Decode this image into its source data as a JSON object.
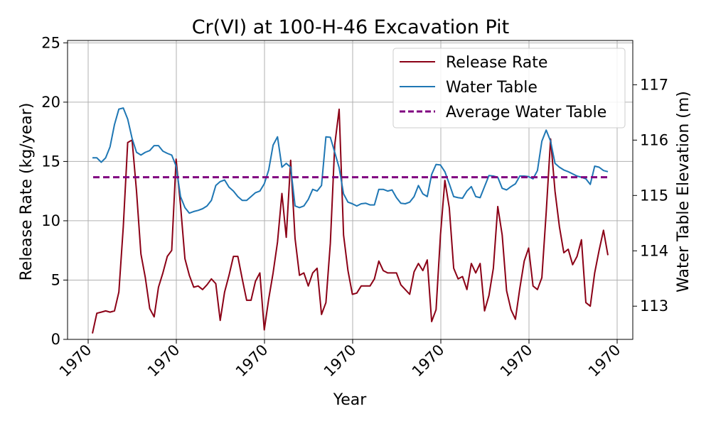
{
  "chart_data": {
    "type": "line",
    "title": "Cr(VI) at 100-H-46 Excavation Pit",
    "xlabel": "Year",
    "ylabel": "Release Rate (kg/year)",
    "ylabel_right": "Water Table Elevation (m)",
    "x_tick_labels": [
      "1970",
      "1970",
      "1970",
      "1970",
      "1970",
      "1970",
      "1970"
    ],
    "y_ticks": [
      0,
      5,
      10,
      15,
      20,
      25
    ],
    "y_tick_labels": [
      "0",
      "5",
      "10",
      "15",
      "20",
      "25"
    ],
    "y_right_ticks": [
      113,
      114,
      115,
      116,
      117
    ],
    "y_right_tick_labels": [
      "113",
      "114",
      "115",
      "116",
      "117"
    ],
    "ylim": [
      0,
      25.2
    ],
    "ylim_right": [
      112.4,
      117.8
    ],
    "grid": true,
    "legend_position": "top-right",
    "series": [
      {
        "name": "Release Rate",
        "axis": "left",
        "color": "#8b0016",
        "style": "solid",
        "values": [
          0.5,
          2.2,
          2.3,
          2.4,
          2.3,
          2.4,
          4.0,
          9.5,
          16.6,
          16.8,
          12.5,
          7.2,
          5.2,
          2.6,
          1.9,
          4.4,
          5.6,
          7.0,
          7.5,
          15.2,
          11.3,
          6.8,
          5.4,
          4.4,
          4.5,
          4.2,
          4.6,
          5.1,
          4.7,
          1.6,
          4.0,
          5.4,
          7.0,
          7.0,
          5.1,
          3.3,
          3.3,
          4.9,
          5.6,
          0.8,
          3.4,
          5.6,
          8.2,
          12.3,
          8.6,
          15.1,
          8.5,
          5.4,
          5.6,
          4.5,
          5.6,
          6.0,
          2.1,
          3.1,
          8.1,
          16.4,
          19.4,
          8.8,
          5.8,
          3.8,
          3.9,
          4.5,
          4.5,
          4.5,
          5.1,
          6.6,
          5.8,
          5.6,
          5.6,
          5.6,
          4.6,
          4.2,
          3.8,
          5.7,
          6.4,
          5.8,
          6.7,
          1.5,
          2.5,
          8.8,
          13.4,
          11.1,
          6.0,
          5.1,
          5.3,
          4.2,
          6.4,
          5.6,
          6.4,
          2.4,
          3.7,
          6.0,
          11.2,
          8.8,
          4.1,
          2.5,
          1.7,
          4.3,
          6.6,
          7.7,
          4.5,
          4.2,
          5.2,
          10.7,
          16.9,
          12.5,
          9.5,
          7.3,
          7.6,
          6.3,
          7.0,
          8.4,
          3.1,
          2.8,
          5.6,
          7.5,
          9.2,
          7.1
        ]
      },
      {
        "name": "Water Table",
        "axis": "right",
        "color": "#1f77b4",
        "style": "solid",
        "values": [
          115.68,
          115.68,
          115.6,
          115.68,
          115.88,
          116.28,
          116.56,
          116.58,
          116.38,
          116.03,
          115.78,
          115.73,
          115.78,
          115.81,
          115.9,
          115.9,
          115.8,
          115.76,
          115.73,
          115.53,
          114.98,
          114.78,
          114.68,
          114.71,
          114.73,
          114.76,
          114.81,
          114.91,
          115.18,
          115.25,
          115.28,
          115.15,
          115.08,
          114.98,
          114.91,
          114.91,
          114.98,
          115.05,
          115.08,
          115.21,
          115.46,
          115.91,
          116.06,
          115.51,
          115.58,
          115.51,
          114.81,
          114.78,
          114.81,
          114.93,
          115.11,
          115.08,
          115.18,
          116.06,
          116.05,
          115.78,
          115.5,
          115.03,
          114.88,
          114.85,
          114.81,
          114.85,
          114.86,
          114.83,
          114.83,
          115.11,
          115.11,
          115.08,
          115.1,
          114.96,
          114.86,
          114.85,
          114.88,
          114.98,
          115.18,
          115.03,
          114.98,
          115.38,
          115.56,
          115.55,
          115.43,
          115.21,
          114.98,
          114.96,
          114.95,
          115.08,
          115.16,
          114.98,
          114.96,
          115.16,
          115.36,
          115.35,
          115.33,
          115.13,
          115.1,
          115.16,
          115.21,
          115.35,
          115.35,
          115.34,
          115.3,
          115.45,
          115.98,
          116.18,
          115.98,
          115.58,
          115.51,
          115.46,
          115.43,
          115.39,
          115.35,
          115.33,
          115.3,
          115.2,
          115.53,
          115.51,
          115.45,
          115.43
        ]
      },
      {
        "name": "Average Water Table",
        "axis": "right",
        "color": "#800080",
        "style": "dashed",
        "values": [
          115.33,
          115.33
        ]
      }
    ]
  }
}
